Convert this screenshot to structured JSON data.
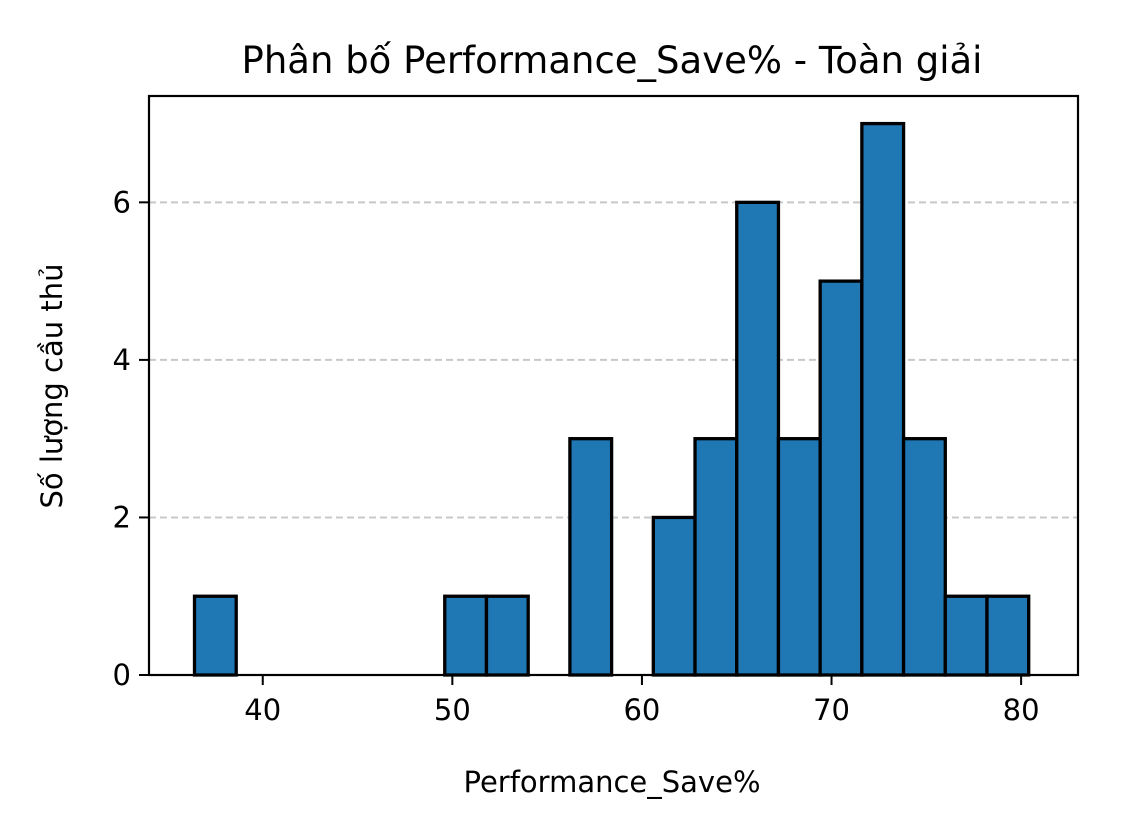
{
  "chart_data": {
    "type": "bar",
    "title": "Phân bố Performance_Save% - Toàn giải",
    "xlabel": "Performance_Save%",
    "ylabel": "Số lượng cầu thủ",
    "xlim": [
      34,
      83
    ],
    "ylim": [
      0,
      7.35
    ],
    "xticks": [
      40,
      50,
      60,
      70,
      80
    ],
    "yticks": [
      0,
      2,
      4,
      6
    ],
    "bin_edges": [
      36.4,
      38.6,
      40.8,
      43.0,
      45.2,
      47.4,
      49.6,
      51.8,
      54.0,
      56.2,
      58.4,
      60.6,
      62.8,
      65.0,
      67.2,
      69.4,
      71.6,
      73.8,
      76.0,
      78.2,
      80.4
    ],
    "counts": [
      1,
      0,
      0,
      0,
      0,
      0,
      1,
      1,
      0,
      3,
      0,
      2,
      3,
      6,
      3,
      5,
      7,
      3,
      1,
      1
    ],
    "grid": {
      "axis": "y",
      "style": "dashed"
    },
    "colors": {
      "bar_fill": "#1f77b4",
      "bar_edge": "#000000",
      "grid": "#c8c8c8"
    }
  }
}
